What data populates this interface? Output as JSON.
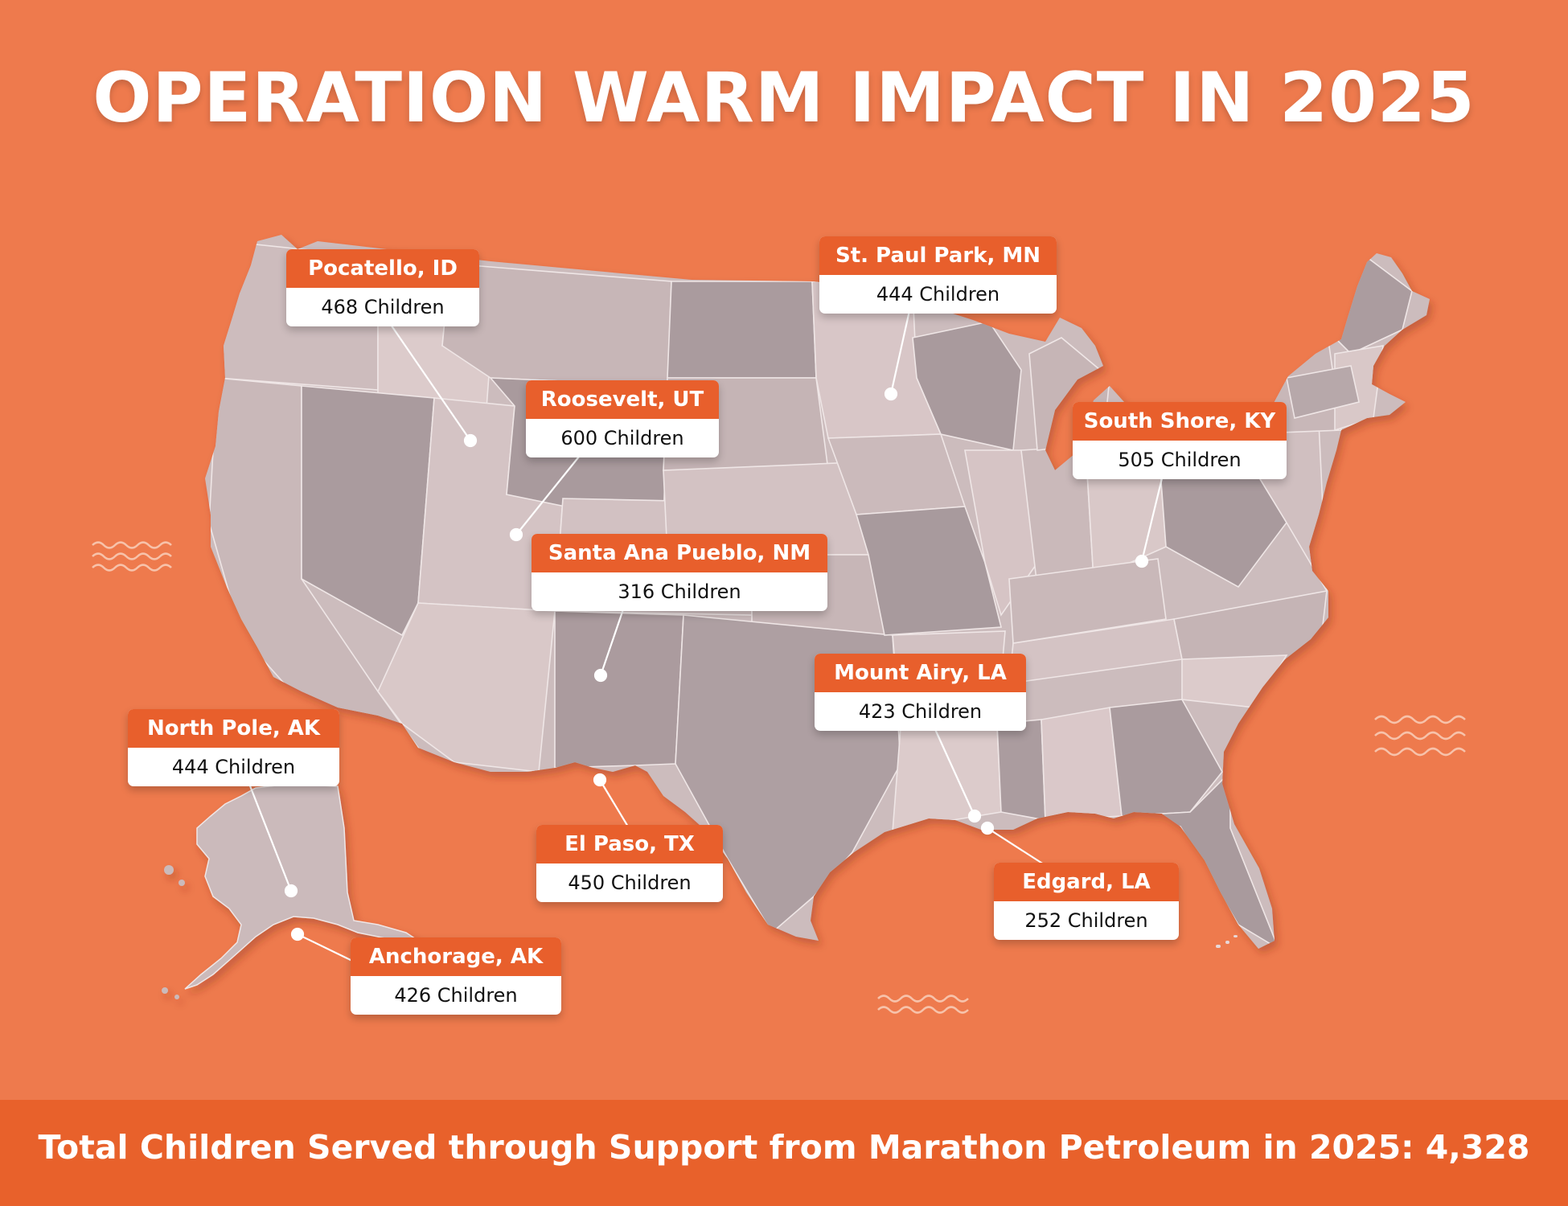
{
  "title": "OPERATION WARM IMPACT IN 2025",
  "footer": "Total Children Served through Support from Marathon Petroleum in 2025: 4,328",
  "colors": {
    "background": "#ee7a4d",
    "accent": "#e85f2c",
    "state_light": "#d9c7c7",
    "state_mid": "#c9b8b9",
    "state_dark": "#ab9c9f"
  },
  "locations": [
    {
      "id": "pocatello",
      "city": "Pocatello, ID",
      "children": "468 Children"
    },
    {
      "id": "st-paul-park",
      "city": "St. Paul Park, MN",
      "children": "444 Children"
    },
    {
      "id": "roosevelt",
      "city": "Roosevelt, UT",
      "children": "600 Children"
    },
    {
      "id": "south-shore",
      "city": "South Shore, KY",
      "children": "505 Children"
    },
    {
      "id": "santa-ana-pueblo",
      "city": "Santa Ana Pueblo, NM",
      "children": "316 Children"
    },
    {
      "id": "mount-airy",
      "city": "Mount Airy, LA",
      "children": "423 Children"
    },
    {
      "id": "north-pole",
      "city": "North Pole, AK",
      "children": "444 Children"
    },
    {
      "id": "el-paso",
      "city": "El Paso, TX",
      "children": "450 Children"
    },
    {
      "id": "edgard",
      "city": "Edgard, LA",
      "children": "252 Children"
    },
    {
      "id": "anchorage",
      "city": "Anchorage, AK",
      "children": "426 Children"
    }
  ]
}
